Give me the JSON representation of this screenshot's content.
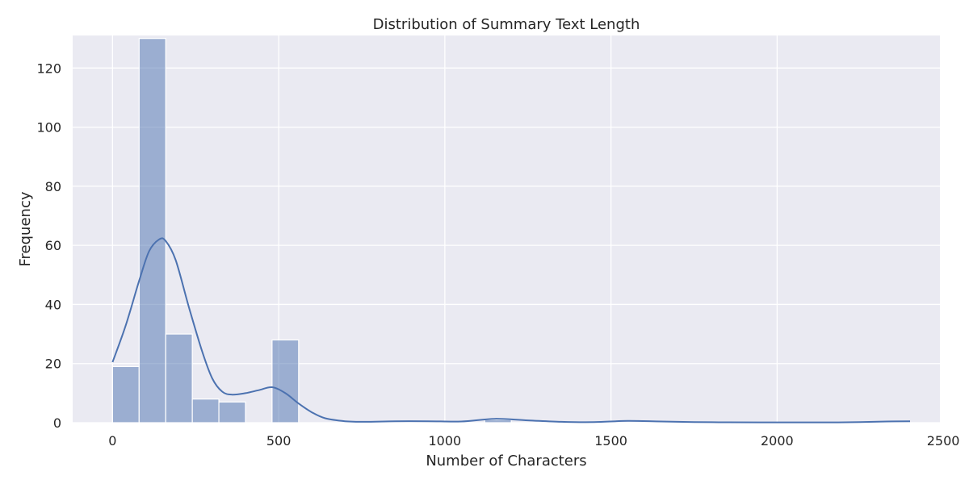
{
  "chart_data": {
    "type": "bar",
    "title": "Distribution of Summary Text Length",
    "xlabel": "Number of Characters",
    "ylabel": "Frequency",
    "xlim": [
      -120,
      2490
    ],
    "ylim": [
      0,
      131
    ],
    "x_ticks": [
      0,
      500,
      1000,
      1500,
      2000,
      2500
    ],
    "y_ticks": [
      0,
      20,
      40,
      60,
      80,
      100,
      120
    ],
    "grid": true,
    "bins": [
      {
        "x0": 0,
        "x1": 80,
        "count": 19
      },
      {
        "x0": 80,
        "x1": 160,
        "count": 130
      },
      {
        "x0": 160,
        "x1": 240,
        "count": 30
      },
      {
        "x0": 240,
        "x1": 320,
        "count": 8
      },
      {
        "x0": 320,
        "x1": 400,
        "count": 7
      },
      {
        "x0": 480,
        "x1": 560,
        "count": 28
      },
      {
        "x0": 1120,
        "x1": 1200,
        "count": 1
      }
    ],
    "kde": {
      "x": [
        0,
        40,
        80,
        110,
        140,
        160,
        190,
        230,
        270,
        300,
        330,
        360,
        400,
        440,
        480,
        520,
        560,
        600,
        640,
        700,
        760,
        850,
        950,
        1050,
        1150,
        1250,
        1350,
        1450,
        1550,
        1650,
        1750,
        1850,
        1950,
        2050,
        2150,
        2250,
        2330,
        2400
      ],
      "y": [
        20.5,
        33,
        48,
        58,
        62,
        61.5,
        55,
        39,
        24,
        15,
        10.5,
        9.5,
        10,
        11,
        12,
        10,
        6.5,
        3.5,
        1.5,
        0.5,
        0.3,
        0.5,
        0.5,
        0.4,
        1.3,
        0.8,
        0.3,
        0.2,
        0.6,
        0.4,
        0.2,
        0.15,
        0.1,
        0.1,
        0.1,
        0.2,
        0.4,
        0.5
      ]
    },
    "colors": {
      "background": "#eaeaf2",
      "grid": "#ffffff",
      "bar_fill": "#4c72b0",
      "bar_opacity": 0.5,
      "kde_line": "#4c72b0",
      "text": "#262626"
    }
  }
}
